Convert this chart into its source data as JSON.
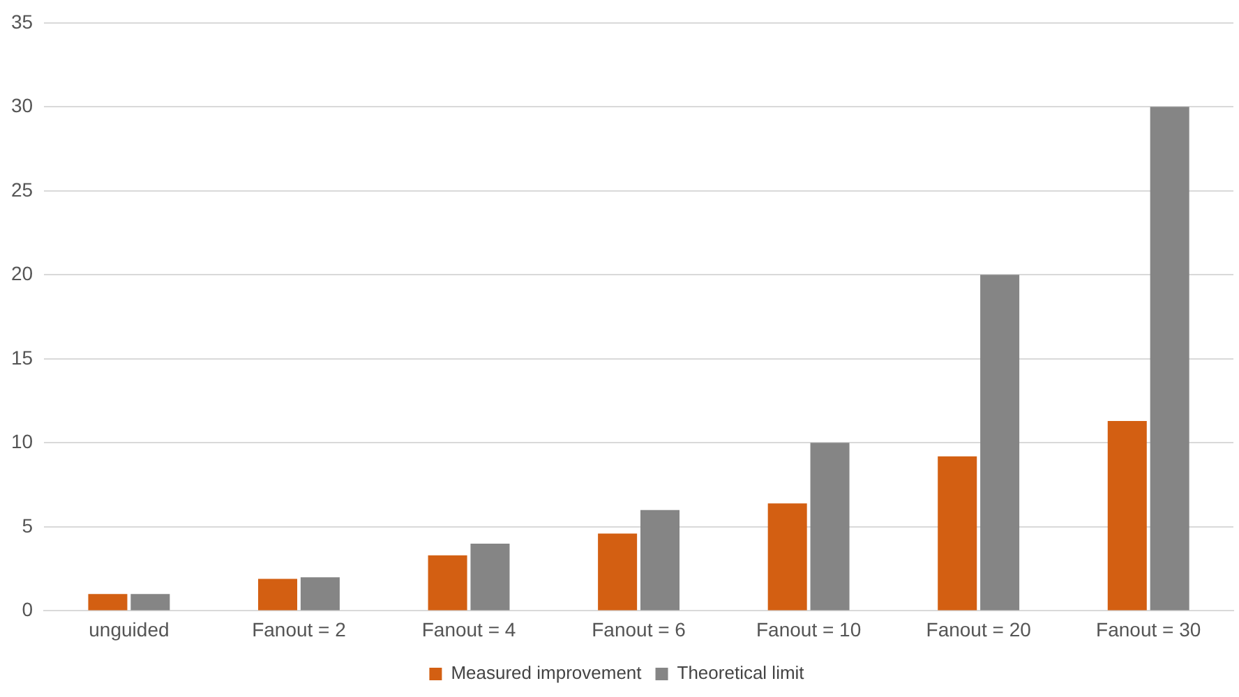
{
  "chart_data": {
    "type": "bar",
    "categories": [
      "unguided",
      "Fanout = 2",
      "Fanout = 4",
      "Fanout = 6",
      "Fanout = 10",
      "Fanout = 20",
      "Fanout = 30"
    ],
    "series": [
      {
        "name": "Measured improvement",
        "color": "#d35f12",
        "values": [
          1,
          1.9,
          3.3,
          4.6,
          6.4,
          9.2,
          11.3
        ]
      },
      {
        "name": "Theoretical limit",
        "color": "#858585",
        "values": [
          1,
          2,
          4,
          6,
          10,
          20,
          30
        ]
      }
    ],
    "ylim": [
      0,
      35
    ],
    "yticks": [
      0,
      5,
      10,
      15,
      20,
      25,
      30,
      35
    ],
    "grid": "y",
    "legend": "bottom"
  }
}
